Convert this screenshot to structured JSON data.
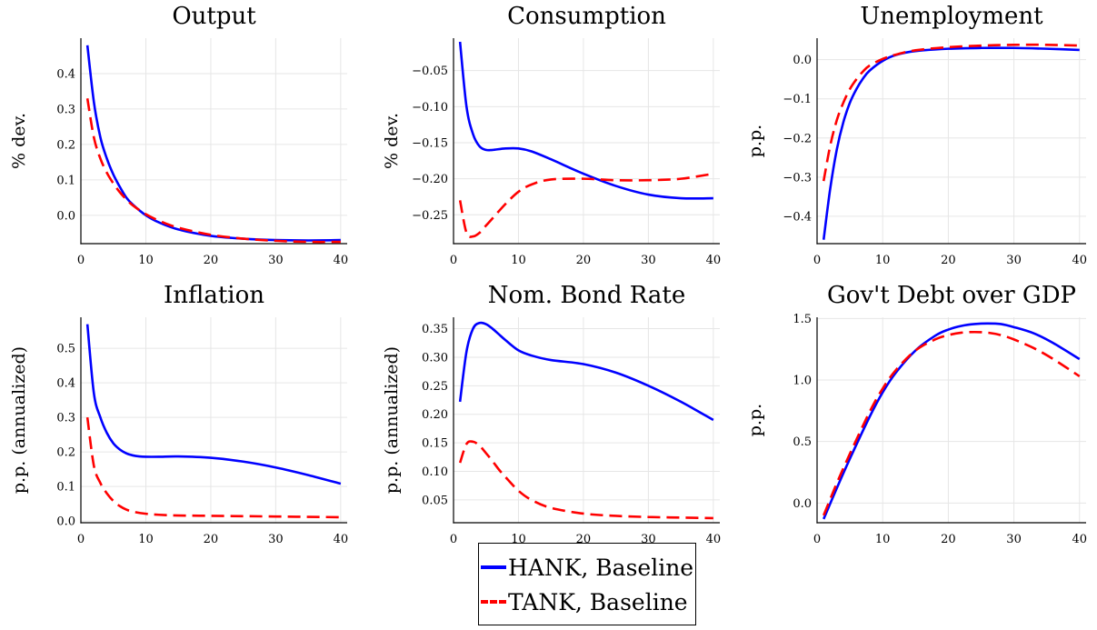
{
  "legend": {
    "items": [
      {
        "label": "HANK, Baseline",
        "color": "#0000ff",
        "dash": "solid"
      },
      {
        "label": "TANK, Baseline",
        "color": "#ff0000",
        "dash": "dashed"
      }
    ]
  },
  "chart_data": [
    {
      "type": "line",
      "title": "Output",
      "ylabel": "% dev.",
      "xlim": [
        0,
        41
      ],
      "ylim": [
        -0.08,
        0.5
      ],
      "xticks": [
        0,
        10,
        20,
        30,
        40
      ],
      "xtick_labels": [
        "0",
        "10",
        "20",
        "30",
        "40"
      ],
      "yticks": [
        0.0,
        0.1,
        0.2,
        0.3,
        0.4
      ],
      "ytick_labels": [
        "0.0",
        "0.1",
        "0.2",
        "0.3",
        "0.4"
      ],
      "grid": true,
      "series": [
        {
          "name": "HANK, Baseline",
          "color": "#0000ff",
          "dash": "solid",
          "x": [
            1,
            2,
            3,
            4,
            5,
            6,
            7,
            8,
            10,
            12,
            15,
            20,
            25,
            30,
            35,
            40
          ],
          "y": [
            0.48,
            0.32,
            0.22,
            0.16,
            0.115,
            0.08,
            0.05,
            0.03,
            0.0,
            -0.02,
            -0.04,
            -0.058,
            -0.066,
            -0.07,
            -0.071,
            -0.07
          ]
        },
        {
          "name": "TANK, Baseline",
          "color": "#ff0000",
          "dash": "dashed",
          "x": [
            1,
            2,
            3,
            4,
            5,
            6,
            7,
            8,
            10,
            12,
            15,
            20,
            25,
            30,
            35,
            40
          ],
          "y": [
            0.33,
            0.22,
            0.16,
            0.12,
            0.09,
            0.065,
            0.045,
            0.028,
            0.003,
            -0.015,
            -0.035,
            -0.055,
            -0.066,
            -0.072,
            -0.075,
            -0.075
          ]
        }
      ]
    },
    {
      "type": "line",
      "title": "Consumption",
      "ylabel": "% dev.",
      "xlim": [
        0,
        41
      ],
      "ylim": [
        -0.29,
        -0.005
      ],
      "xticks": [
        0,
        10,
        20,
        30,
        40
      ],
      "xtick_labels": [
        "0",
        "10",
        "20",
        "30",
        "40"
      ],
      "yticks": [
        -0.05,
        -0.1,
        -0.15,
        -0.2,
        -0.25
      ],
      "ytick_labels": [
        "−0.05",
        "−0.10",
        "−0.15",
        "−0.20",
        "−0.25"
      ],
      "grid": true,
      "series": [
        {
          "name": "HANK, Baseline",
          "color": "#0000ff",
          "dash": "solid",
          "x": [
            1,
            2,
            3,
            4,
            5,
            6,
            8,
            10,
            12,
            15,
            20,
            25,
            30,
            35,
            40
          ],
          "y": [
            -0.01,
            -0.1,
            -0.138,
            -0.155,
            -0.16,
            -0.16,
            -0.158,
            -0.158,
            -0.162,
            -0.173,
            -0.193,
            -0.21,
            -0.222,
            -0.227,
            -0.227
          ]
        },
        {
          "name": "TANK, Baseline",
          "color": "#ff0000",
          "dash": "dashed",
          "x": [
            1,
            2,
            3,
            4,
            5,
            6,
            8,
            10,
            12,
            15,
            20,
            25,
            30,
            35,
            40
          ],
          "y": [
            -0.23,
            -0.275,
            -0.28,
            -0.275,
            -0.265,
            -0.255,
            -0.235,
            -0.218,
            -0.208,
            -0.201,
            -0.2,
            -0.202,
            -0.202,
            -0.2,
            -0.193
          ]
        }
      ]
    },
    {
      "type": "line",
      "title": "Unemployment",
      "ylabel": "p.p.",
      "xlim": [
        0,
        41
      ],
      "ylim": [
        -0.47,
        0.055
      ],
      "xticks": [
        0,
        10,
        20,
        30,
        40
      ],
      "xtick_labels": [
        "0",
        "10",
        "20",
        "30",
        "40"
      ],
      "yticks": [
        0.0,
        -0.1,
        -0.2,
        -0.3,
        -0.4
      ],
      "ytick_labels": [
        "0.0",
        "−0.1",
        "−0.2",
        "−0.3",
        "−0.4"
      ],
      "grid": true,
      "series": [
        {
          "name": "HANK, Baseline",
          "color": "#0000ff",
          "dash": "solid",
          "x": [
            1,
            2,
            3,
            4,
            5,
            6,
            7,
            8,
            10,
            12,
            15,
            20,
            25,
            30,
            35,
            40
          ],
          "y": [
            -0.46,
            -0.33,
            -0.23,
            -0.16,
            -0.11,
            -0.075,
            -0.048,
            -0.028,
            -0.003,
            0.012,
            0.022,
            0.028,
            0.03,
            0.03,
            0.028,
            0.025
          ]
        },
        {
          "name": "TANK, Baseline",
          "color": "#ff0000",
          "dash": "dashed",
          "x": [
            1,
            2,
            3,
            4,
            5,
            6,
            7,
            8,
            10,
            12,
            15,
            20,
            25,
            30,
            35,
            40
          ],
          "y": [
            -0.31,
            -0.22,
            -0.155,
            -0.11,
            -0.075,
            -0.05,
            -0.03,
            -0.015,
            0.002,
            0.013,
            0.024,
            0.032,
            0.036,
            0.038,
            0.038,
            0.036
          ]
        }
      ]
    },
    {
      "type": "line",
      "title": "Inflation",
      "ylabel": "p.p. (annualized)",
      "xlim": [
        0,
        41
      ],
      "ylim": [
        -0.005,
        0.59
      ],
      "xticks": [
        0,
        10,
        20,
        30,
        40
      ],
      "xtick_labels": [
        "0",
        "10",
        "20",
        "30",
        "40"
      ],
      "yticks": [
        0.0,
        0.1,
        0.2,
        0.3,
        0.4,
        0.5
      ],
      "ytick_labels": [
        "0.0",
        "0.1",
        "0.2",
        "0.3",
        "0.4",
        "0.5"
      ],
      "grid": true,
      "series": [
        {
          "name": "HANK, Baseline",
          "color": "#0000ff",
          "dash": "solid",
          "x": [
            1,
            2,
            3,
            4,
            5,
            6,
            7,
            8,
            9,
            10,
            12,
            15,
            20,
            25,
            30,
            35,
            40
          ],
          "y": [
            0.57,
            0.37,
            0.3,
            0.255,
            0.225,
            0.207,
            0.196,
            0.19,
            0.187,
            0.186,
            0.186,
            0.187,
            0.183,
            0.172,
            0.155,
            0.133,
            0.108
          ]
        },
        {
          "name": "TANK, Baseline",
          "color": "#ff0000",
          "dash": "dashed",
          "x": [
            1,
            2,
            3,
            4,
            5,
            6,
            7,
            8,
            10,
            12,
            15,
            20,
            25,
            30,
            35,
            40
          ],
          "y": [
            0.3,
            0.16,
            0.11,
            0.08,
            0.058,
            0.043,
            0.033,
            0.027,
            0.021,
            0.018,
            0.016,
            0.015,
            0.014,
            0.013,
            0.012,
            0.011
          ]
        }
      ]
    },
    {
      "type": "line",
      "title": "Nom. Bond Rate",
      "ylabel": "p.p. (annualized)",
      "xlim": [
        0,
        41
      ],
      "ylim": [
        0.01,
        0.37
      ],
      "xticks": [
        0,
        10,
        20,
        30,
        40
      ],
      "xtick_labels": [
        "0",
        "10",
        "20",
        "30",
        "40"
      ],
      "yticks": [
        0.05,
        0.1,
        0.15,
        0.2,
        0.25,
        0.3,
        0.35
      ],
      "ytick_labels": [
        "0.05",
        "0.10",
        "0.15",
        "0.20",
        "0.25",
        "0.30",
        "0.35"
      ],
      "grid": true,
      "series": [
        {
          "name": "HANK, Baseline",
          "color": "#0000ff",
          "dash": "solid",
          "x": [
            1,
            2,
            3,
            4,
            5,
            6,
            7,
            8,
            10,
            12,
            15,
            20,
            25,
            30,
            35,
            40
          ],
          "y": [
            0.222,
            0.31,
            0.35,
            0.36,
            0.358,
            0.35,
            0.34,
            0.33,
            0.312,
            0.303,
            0.295,
            0.288,
            0.273,
            0.25,
            0.222,
            0.19
          ]
        },
        {
          "name": "TANK, Baseline",
          "color": "#ff0000",
          "dash": "dashed",
          "x": [
            1,
            2,
            3,
            4,
            5,
            6,
            7,
            8,
            10,
            12,
            15,
            20,
            25,
            30,
            35,
            40
          ],
          "y": [
            0.115,
            0.148,
            0.152,
            0.145,
            0.132,
            0.118,
            0.103,
            0.09,
            0.066,
            0.05,
            0.036,
            0.026,
            0.022,
            0.02,
            0.019,
            0.018
          ]
        }
      ]
    },
    {
      "type": "line",
      "title": "Gov't Debt over GDP",
      "ylabel": "p.p.",
      "xlim": [
        0,
        41
      ],
      "ylim": [
        -0.16,
        1.51
      ],
      "xticks": [
        0,
        10,
        20,
        30,
        40
      ],
      "xtick_labels": [
        "0",
        "10",
        "20",
        "30",
        "40"
      ],
      "yticks": [
        0.0,
        0.5,
        1.0,
        1.5
      ],
      "ytick_labels": [
        "0.0",
        "0.5",
        "1.0",
        "1.5"
      ],
      "grid": true,
      "series": [
        {
          "name": "HANK, Baseline",
          "color": "#0000ff",
          "dash": "solid",
          "x": [
            1,
            3,
            5,
            8,
            10,
            12,
            15,
            18,
            20,
            22,
            24,
            26,
            28,
            30,
            33,
            36,
            40
          ],
          "y": [
            -0.13,
            0.12,
            0.36,
            0.7,
            0.9,
            1.06,
            1.24,
            1.36,
            1.41,
            1.44,
            1.455,
            1.46,
            1.455,
            1.43,
            1.38,
            1.3,
            1.17
          ]
        },
        {
          "name": "TANK, Baseline",
          "color": "#ff0000",
          "dash": "dashed",
          "x": [
            1,
            3,
            5,
            8,
            10,
            12,
            15,
            18,
            20,
            22,
            24,
            26,
            28,
            30,
            33,
            36,
            40
          ],
          "y": [
            -0.1,
            0.16,
            0.4,
            0.74,
            0.93,
            1.08,
            1.24,
            1.33,
            1.365,
            1.385,
            1.39,
            1.385,
            1.365,
            1.33,
            1.26,
            1.17,
            1.03
          ]
        }
      ]
    }
  ]
}
